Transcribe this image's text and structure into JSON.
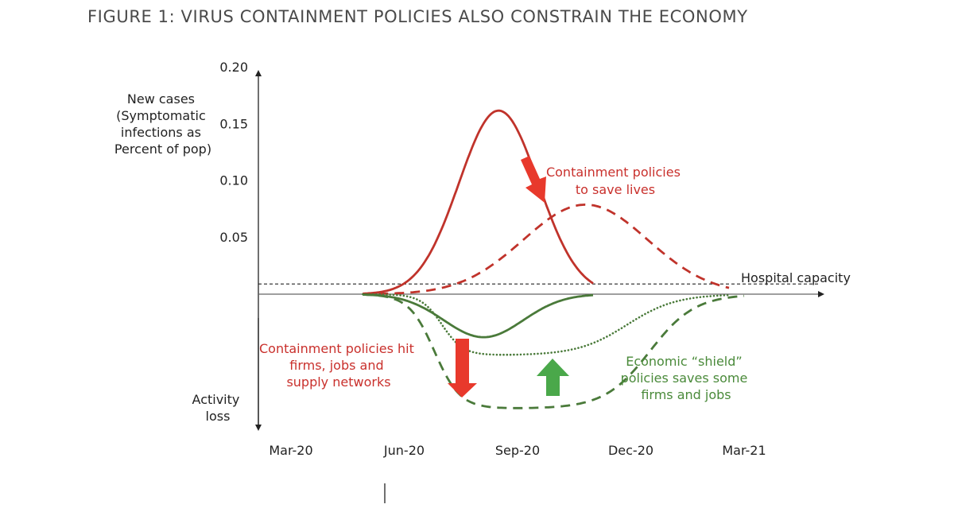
{
  "title": "FIGURE 1: VIRUS CONTAINMENT POLICIES ALSO CONSTRAIN THE ECONOMY",
  "colors": {
    "red": "#c0332b",
    "arrow_red": "#e8392c",
    "green": "#4a7a3a",
    "arrow_green": "#4aa84a",
    "axis": "#222222"
  },
  "chart_data": {
    "type": "line",
    "x_ticks": [
      "Mar-20",
      "Jun-20",
      "Sep-20",
      "Dec-20",
      "Mar-21"
    ],
    "y_ticks": [
      "0.20",
      "0.15",
      "0.10",
      "0.05"
    ],
    "y_tick_values": [
      0.2,
      0.15,
      0.1,
      0.05
    ],
    "ylabel_top": [
      "New cases",
      "(Symptomatic",
      "infections as",
      "Percent of pop)"
    ],
    "ylabel_bottom": [
      "Activity",
      "loss"
    ],
    "ylim": [
      -0.12,
      0.2
    ],
    "hospital_capacity": {
      "label": "Hospital capacity",
      "value": 0.009
    },
    "series": [
      {
        "key": "cases-no-policy",
        "style": "solid",
        "color": "red",
        "kind": "cases",
        "mu": 5.5,
        "sigma": 1.05,
        "amp": 0.162,
        "start": 1.9,
        "end": 8.0
      },
      {
        "key": "cases-with-policy",
        "style": "dashed",
        "color": "red",
        "kind": "cases",
        "mu": 7.8,
        "sigma": 1.65,
        "amp": 0.079,
        "start": 1.9,
        "end": 11.6
      },
      {
        "key": "activity-loss-small",
        "style": "solid",
        "color": "green",
        "kind": "loss",
        "start": 1.9,
        "end": 8.0,
        "mu": 5.1,
        "sigma": 1.05,
        "amp": 0.038
      },
      {
        "key": "activity-loss-with-shield",
        "style": "dotted",
        "color": "green",
        "kind": "loss",
        "start": 1.9,
        "end": 11.6,
        "rise": 4.0,
        "rise_w": 0.28,
        "fall": 8.9,
        "fall_w": 0.65,
        "amp": 0.054
      },
      {
        "key": "activity-loss-without-shield",
        "style": "dashed",
        "color": "green",
        "kind": "loss",
        "start": 1.9,
        "end": 12.0,
        "rise": 3.8,
        "rise_w": 0.34,
        "fall": 9.5,
        "fall_w": 0.6,
        "amp": 0.101
      }
    ],
    "annotations": [
      {
        "key": "containment-save-lives",
        "lines": [
          "Containment policies",
          "to save lives"
        ],
        "color": "red"
      },
      {
        "key": "containment-hit-firms",
        "lines": [
          "Containment policies hit",
          "firms, jobs and",
          "supply networks"
        ],
        "color": "red"
      },
      {
        "key": "economic-shield",
        "lines": [
          "Economic “shield”",
          "policies saves some",
          "firms and jobs"
        ],
        "color": "green"
      }
    ]
  }
}
